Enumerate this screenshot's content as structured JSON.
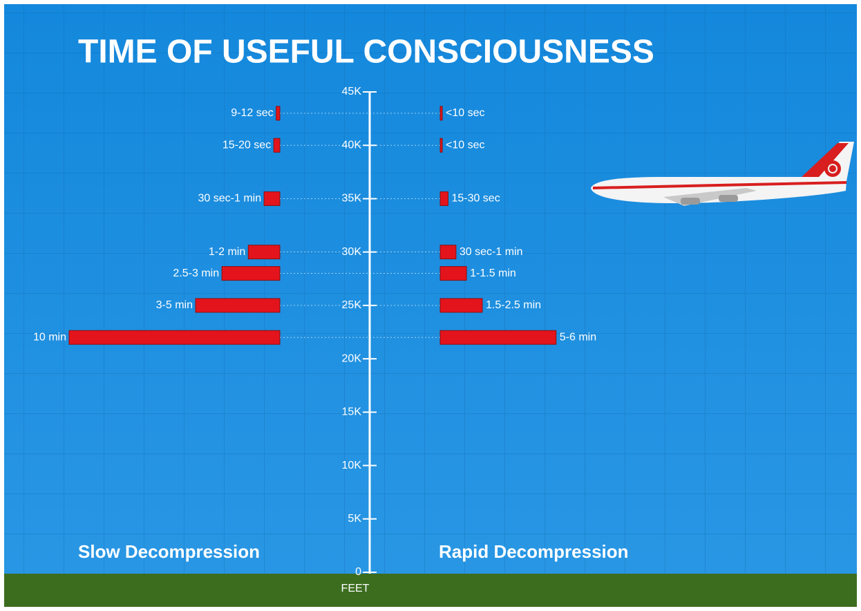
{
  "chart_data": {
    "type": "butterfly-bar",
    "title": "TIME OF USEFUL CONSCIOUSNESS",
    "y_label": "FEET",
    "y": [
      43000,
      40000,
      35000,
      30000,
      28000,
      25000,
      22000
    ],
    "ylim": [
      0,
      45000
    ],
    "yticks": [
      0,
      {
        "value": 5000,
        "label": "5K"
      },
      {
        "value": 10000,
        "label": "10K"
      },
      {
        "value": 15000,
        "label": "15K"
      },
      {
        "value": 20000,
        "label": "20K"
      },
      {
        "value": 25000,
        "label": "25K"
      },
      {
        "value": 30000,
        "label": "30K"
      },
      {
        "value": 35000,
        "label": "35K"
      },
      {
        "value": 40000,
        "label": "40K"
      },
      {
        "value": 45000,
        "label": "45K"
      }
    ],
    "series": [
      {
        "name": "Slow Decompression",
        "color": "#e3141c",
        "side": "left",
        "values": [
          0.175,
          0.29,
          0.75,
          1.5,
          2.75,
          4,
          10
        ],
        "value_labels": [
          "9-12 sec",
          "15-20 sec",
          "30 sec-1 min",
          "1-2 min",
          "2.5-3 min",
          "3-5 min",
          "10 min"
        ]
      },
      {
        "name": "Rapid Decompression",
        "color": "#e3141c",
        "side": "right",
        "values": [
          0.1,
          0.1,
          0.375,
          0.75,
          1.25,
          2,
          5.5
        ],
        "value_labels": [
          "<10 sec",
          "<10 sec",
          "15-30 sec",
          "30 sec-1 min",
          "1-1.5 min",
          "1.5-2.5 min",
          "5-6 min"
        ]
      }
    ]
  }
}
